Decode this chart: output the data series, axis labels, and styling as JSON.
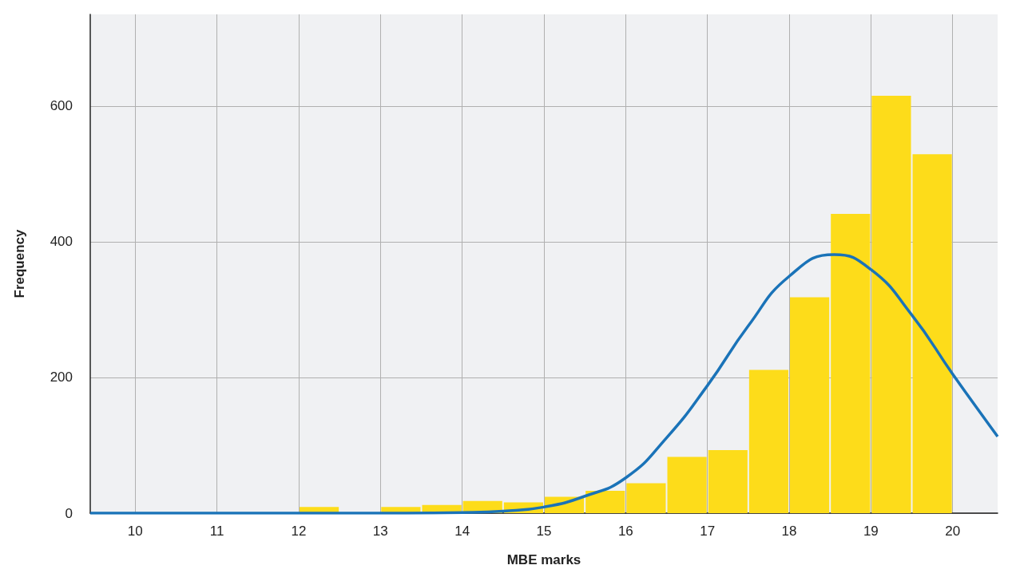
{
  "chart_data": {
    "type": "histogram",
    "xlabel": "MBE marks",
    "ylabel": "Frequency",
    "bins": [
      12,
      12.5,
      13,
      13.5,
      14,
      14.5,
      15,
      15.5,
      16,
      16.5,
      17,
      17.5,
      18,
      18.5,
      19,
      19.5,
      20
    ],
    "values": [
      9,
      0,
      9,
      12,
      18,
      16,
      24,
      33,
      44,
      83,
      93,
      211,
      318,
      441,
      615,
      529
    ],
    "color": "#fddc1a",
    "series": [
      {
        "type": "line",
        "color": "#1a73b8",
        "x": [
          9.45,
          12,
          13,
          14,
          14.5,
          15,
          15.5,
          16,
          16.5,
          17,
          17.5,
          18,
          18.55,
          19,
          19.5,
          20,
          20.55
        ],
        "values": [
          0,
          0,
          0,
          1,
          3,
          9,
          25,
          52,
          111,
          188,
          276,
          349,
          381,
          359,
          292,
          205,
          113
        ]
      }
    ],
    "xlim": [
      9.45,
      20.55
    ],
    "xticks": [
      10,
      11,
      12,
      13,
      14,
      15,
      16,
      17,
      18,
      19,
      20
    ],
    "ylim": [
      0,
      735
    ],
    "yticks": [
      0,
      200,
      400,
      600
    ],
    "grid": true,
    "marker": "none",
    "line_style": "solid"
  }
}
